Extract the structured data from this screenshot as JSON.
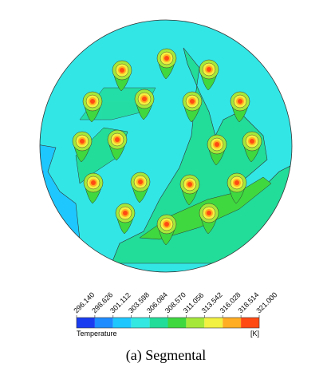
{
  "chart_data": {
    "type": "contour",
    "caption": "(a) Segmental",
    "colorbar": {
      "label": "Temperature",
      "unit": "[K]",
      "lim": [
        296.14,
        321
      ],
      "ticks": [
        {
          "value": 296.14,
          "label": "296.140"
        },
        {
          "value": 298.626,
          "label": "298.626"
        },
        {
          "value": 301.112,
          "label": "301.112"
        },
        {
          "value": 303.598,
          "label": "303.598"
        },
        {
          "value": 306.084,
          "label": "306.084"
        },
        {
          "value": 308.57,
          "label": "308.570"
        },
        {
          "value": 311.056,
          "label": "311.056"
        },
        {
          "value": 313.542,
          "label": "313.542"
        },
        {
          "value": 316.028,
          "label": "316.028"
        },
        {
          "value": 318.514,
          "label": "318.514"
        },
        {
          "value": 321,
          "label": "321.000"
        }
      ],
      "colors": [
        "#1a3cf0",
        "#1e8cff",
        "#1ec8ff",
        "#33e8e0",
        "#22dc9a",
        "#3fd83f",
        "#a6e83a",
        "#f2f040",
        "#ffad22",
        "#ff4a14"
      ]
    }
  }
}
